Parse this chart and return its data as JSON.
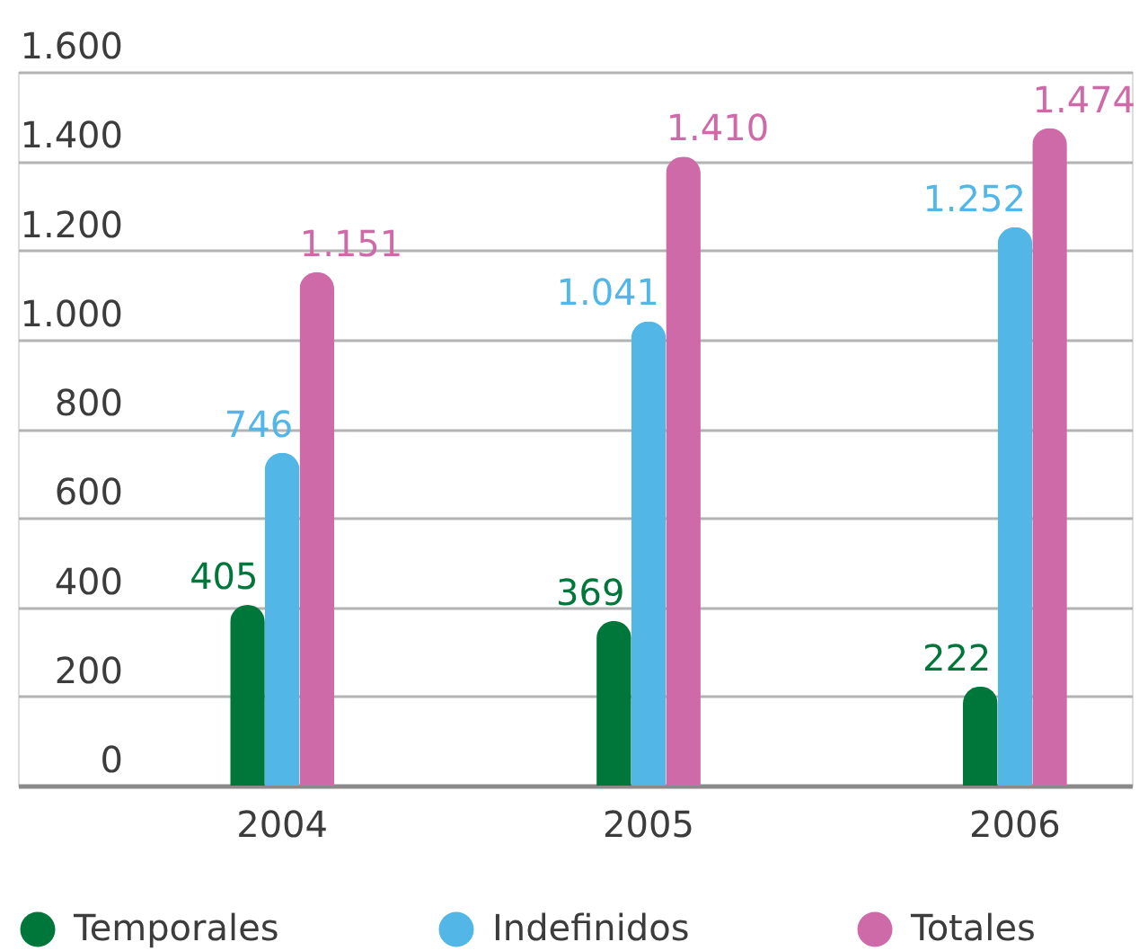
{
  "chart_data": {
    "type": "bar",
    "categories": [
      "2004",
      "2005",
      "2006"
    ],
    "series": [
      {
        "name": "Temporales",
        "color": "#00773a",
        "values": [
          405,
          369,
          222
        ],
        "value_labels": [
          "405",
          "369",
          "222"
        ]
      },
      {
        "name": "Indefinidos",
        "color": "#52b6e6",
        "values": [
          746,
          1041,
          1252
        ],
        "value_labels": [
          "746",
          "1.041",
          "1.252"
        ]
      },
      {
        "name": "Totales",
        "color": "#cf6aa9",
        "values": [
          1151,
          1410,
          1474
        ],
        "value_labels": [
          "1.151",
          "1.410",
          "1.474"
        ]
      }
    ],
    "ylim": [
      0,
      1600
    ],
    "yticks": [
      0,
      200,
      400,
      600,
      800,
      {
        "value": 1000,
        "label": "1.000"
      },
      {
        "value": 1200,
        "label": "1.200"
      },
      {
        "value": 1400,
        "label": "1.400"
      },
      {
        "value": 1600,
        "label": "1.600"
      }
    ],
    "grid": "y",
    "legend": "bottom"
  }
}
